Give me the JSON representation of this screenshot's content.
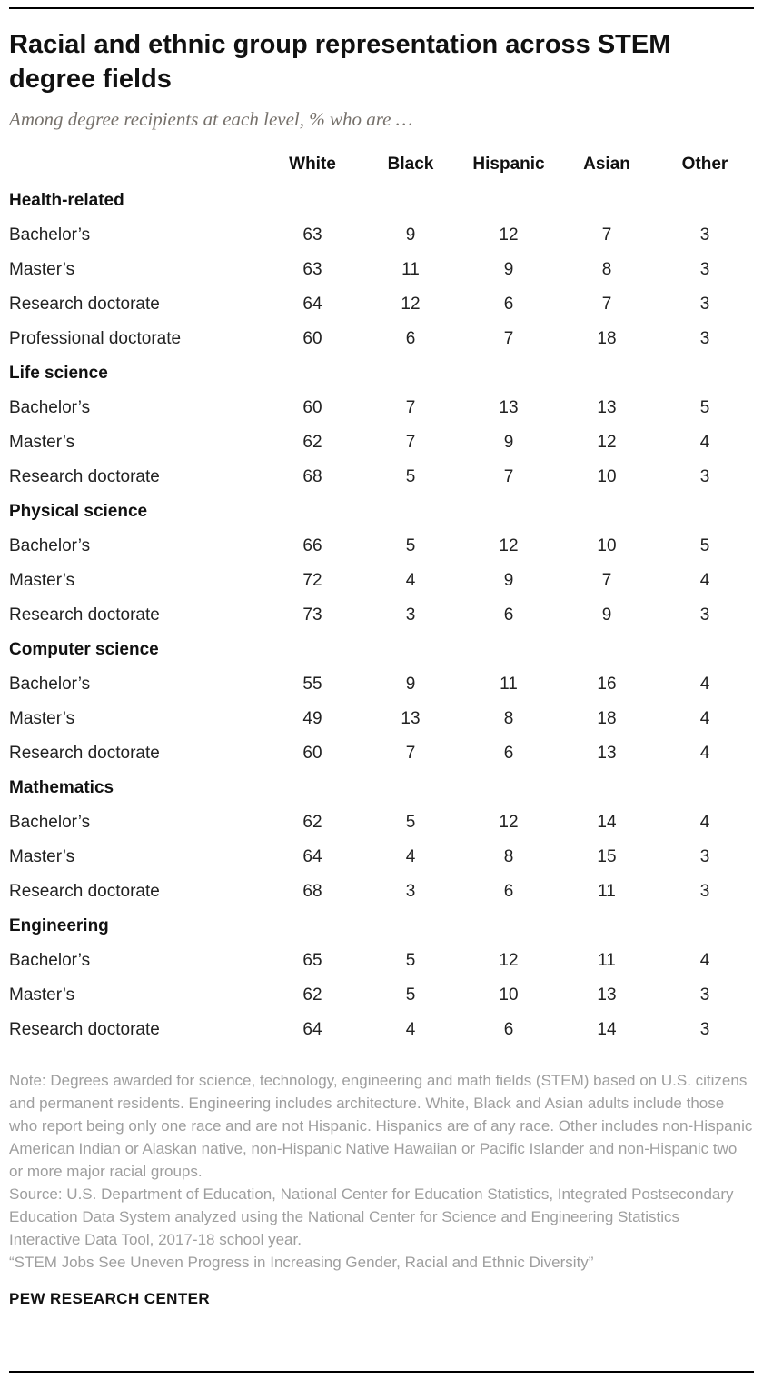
{
  "chart_data": {
    "type": "table",
    "title": "Racial and ethnic group representation across STEM degree fields",
    "subtitle": "Among degree recipients at each level, % who are …",
    "columns": [
      "White",
      "Black",
      "Hispanic",
      "Asian",
      "Other"
    ],
    "sections": [
      {
        "name": "Health-related",
        "rows": [
          {
            "label": "Bachelor’s",
            "values": [
              63,
              9,
              12,
              7,
              3
            ]
          },
          {
            "label": "Master’s",
            "values": [
              63,
              11,
              9,
              8,
              3
            ]
          },
          {
            "label": "Research doctorate",
            "values": [
              64,
              12,
              6,
              7,
              3
            ]
          },
          {
            "label": "Professional doctorate",
            "values": [
              60,
              6,
              7,
              18,
              3
            ]
          }
        ]
      },
      {
        "name": "Life science",
        "rows": [
          {
            "label": "Bachelor’s",
            "values": [
              60,
              7,
              13,
              13,
              5
            ]
          },
          {
            "label": "Master’s",
            "values": [
              62,
              7,
              9,
              12,
              4
            ]
          },
          {
            "label": "Research doctorate",
            "values": [
              68,
              5,
              7,
              10,
              3
            ]
          }
        ]
      },
      {
        "name": "Physical science",
        "rows": [
          {
            "label": "Bachelor’s",
            "values": [
              66,
              5,
              12,
              10,
              5
            ]
          },
          {
            "label": "Master’s",
            "values": [
              72,
              4,
              9,
              7,
              4
            ]
          },
          {
            "label": "Research doctorate",
            "values": [
              73,
              3,
              6,
              9,
              3
            ]
          }
        ]
      },
      {
        "name": "Computer science",
        "rows": [
          {
            "label": "Bachelor’s",
            "values": [
              55,
              9,
              11,
              16,
              4
            ]
          },
          {
            "label": "Master’s",
            "values": [
              49,
              13,
              8,
              18,
              4
            ]
          },
          {
            "label": "Research doctorate",
            "values": [
              60,
              7,
              6,
              13,
              4
            ]
          }
        ]
      },
      {
        "name": "Mathematics",
        "rows": [
          {
            "label": "Bachelor’s",
            "values": [
              62,
              5,
              12,
              14,
              4
            ]
          },
          {
            "label": "Master’s",
            "values": [
              64,
              4,
              8,
              15,
              3
            ]
          },
          {
            "label": "Research doctorate",
            "values": [
              68,
              3,
              6,
              11,
              3
            ]
          }
        ]
      },
      {
        "name": "Engineering",
        "rows": [
          {
            "label": "Bachelor’s",
            "values": [
              65,
              5,
              12,
              11,
              4
            ]
          },
          {
            "label": "Master’s",
            "values": [
              62,
              5,
              10,
              13,
              3
            ]
          },
          {
            "label": "Research doctorate",
            "values": [
              64,
              4,
              6,
              14,
              3
            ]
          }
        ]
      }
    ],
    "note": "Note: Degrees awarded for science, technology, engineering and math fields (STEM) based on U.S. citizens and permanent residents. Engineering includes architecture. White, Black and Asian adults include those who report being only one race and are not Hispanic. Hispanics are of any race. Other includes non-Hispanic American Indian or Alaskan native, non-Hispanic Native Hawaiian or Pacific Islander and non-Hispanic two or more major racial groups.",
    "source": "Source: U.S. Department of Education, National Center for Education Statistics, Integrated Postsecondary Education Data System analyzed using the National Center for Science and Engineering Statistics Interactive Data Tool, 2017-18 school year.",
    "report_title": "“STEM Jobs See Uneven Progress in Increasing Gender, Racial and Ethnic Diversity”",
    "footer": "PEW RESEARCH CENTER",
    "layout": {
      "grid": "off",
      "legend": "none",
      "text_color": "#222222",
      "note_color": "#9e9e9e",
      "rule_color": "#000000"
    }
  }
}
